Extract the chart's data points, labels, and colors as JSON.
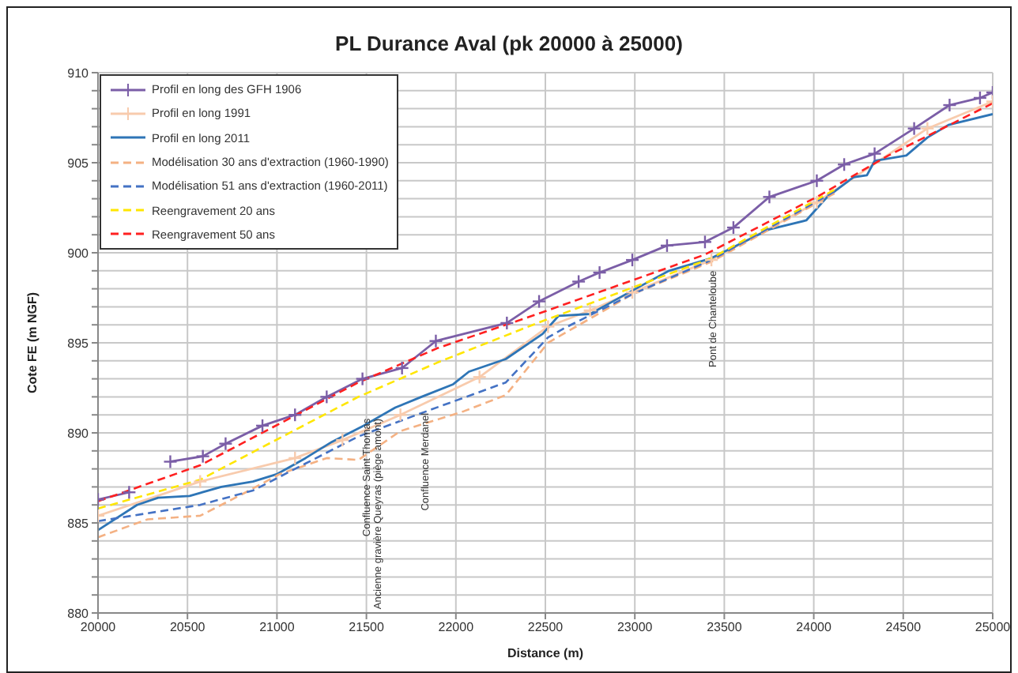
{
  "chart_data": {
    "type": "line",
    "title": "PL Durance Aval (pk 20000 à 25000)",
    "xlabel": "Distance (m)",
    "ylabel": "Cote FE (m NGF)",
    "xlim": [
      20000,
      25000
    ],
    "xticks": [
      20000,
      20500,
      21000,
      21500,
      22000,
      22500,
      23000,
      23500,
      24000,
      24500,
      25000
    ],
    "ylim": [
      880,
      910
    ],
    "yticks": [
      880,
      {
        "value": 881,
        "label": null
      },
      {
        "value": 882,
        "label": null
      },
      {
        "value": 883,
        "label": null
      },
      {
        "value": 884,
        "label": null
      },
      885,
      {
        "value": 886,
        "label": null
      },
      {
        "value": 887,
        "label": null
      },
      {
        "value": 888,
        "label": null
      },
      {
        "value": 889,
        "label": null
      },
      890,
      {
        "value": 891,
        "label": null
      },
      {
        "value": 892,
        "label": null
      },
      {
        "value": 893,
        "label": null
      },
      {
        "value": 894,
        "label": null
      },
      895,
      {
        "value": 896,
        "label": null
      },
      {
        "value": 897,
        "label": null
      },
      {
        "value": 898,
        "label": null
      },
      {
        "value": 899,
        "label": null
      },
      900,
      {
        "value": 901,
        "label": null
      },
      {
        "value": 902,
        "label": null
      },
      {
        "value": 903,
        "label": null
      },
      {
        "value": 904,
        "label": null
      },
      905,
      {
        "value": 906,
        "label": null
      },
      {
        "value": 907,
        "label": null
      },
      {
        "value": 908,
        "label": null
      },
      {
        "value": 909,
        "label": null
      },
      910
    ],
    "grid": true,
    "legend": "top left",
    "series": [
      {
        "name": "Profil en long des GFH 1906",
        "color": "#7b5ea7",
        "marker": "cross",
        "line_style": "solid",
        "x": [
          20000,
          20174,
          20200,
          20404,
          20586,
          20713,
          20919,
          21101,
          21278,
          21478,
          21699,
          21888,
          22285,
          22465,
          22686,
          22803,
          22986,
          23180,
          23392,
          23551,
          23752,
          24017,
          24170,
          24340,
          24561,
          24759,
          24929,
          25000
        ],
        "values": [
          886.3,
          886.7,
          null,
          888.4,
          888.7,
          889.4,
          890.4,
          891.0,
          892.0,
          893.0,
          893.6,
          895.1,
          896.1,
          897.3,
          898.4,
          898.9,
          899.6,
          900.4,
          900.6,
          901.4,
          903.1,
          904.0,
          904.9,
          905.5,
          906.9,
          908.2,
          908.6,
          908.9
        ]
      },
      {
        "name": "Profil en long 1991",
        "color": "#f8cbad",
        "marker": "cross",
        "line_style": "solid",
        "x": [
          20000,
          20571,
          21101,
          21366,
          21690,
          22132,
          22515,
          22750,
          22986,
          23428,
          24017,
          24635,
          25000
        ],
        "values": [
          885.4,
          887.3,
          888.6,
          889.6,
          891.0,
          893.1,
          895.9,
          896.8,
          897.8,
          899.6,
          902.8,
          906.9,
          908.4
        ]
      },
      {
        "name": "Profil en long 2011",
        "color": "#2e75b6",
        "line_style": "solid",
        "x": [
          20000,
          20218,
          20336,
          20512,
          20689,
          20866,
          20998,
          21160,
          21307,
          21484,
          21661,
          21808,
          21985,
          22073,
          22279,
          22485,
          22574,
          22750,
          22986,
          23191,
          23428,
          23752,
          23958,
          24075,
          24223,
          24297,
          24340,
          24517,
          24635,
          24753,
          25000
        ],
        "values": [
          884.6,
          886.0,
          886.4,
          886.5,
          887.0,
          887.3,
          887.7,
          888.6,
          889.5,
          890.4,
          891.4,
          892.0,
          892.7,
          893.4,
          894.1,
          895.5,
          896.5,
          896.6,
          897.9,
          899.0,
          899.7,
          901.3,
          901.8,
          903.1,
          904.2,
          904.3,
          905.1,
          905.4,
          906.4,
          907.1,
          907.7
        ]
      },
      {
        "name": "Modélisation 30 ans d'extraction (1960-1990)",
        "color": "#f4b183",
        "line_style": "dashed",
        "x": [
          20000,
          20277,
          20571,
          20807,
          21013,
          21278,
          21455,
          21690,
          22044,
          22279,
          22515,
          22986,
          23428,
          24134
        ],
        "values": [
          884.2,
          885.2,
          885.4,
          886.6,
          887.7,
          888.6,
          888.5,
          890.1,
          891.2,
          892.1,
          895.0,
          897.7,
          899.5,
          903.4
        ]
      },
      {
        "name": "Modélisation 51 ans d'extraction (1960-2011)",
        "color": "#4472c4",
        "line_style": "dashed",
        "x": [
          20000,
          20571,
          20866,
          21160,
          21455,
          21808,
          22279,
          22515,
          22603,
          22986,
          23428,
          24134
        ],
        "values": [
          885.1,
          886.0,
          886.8,
          888.3,
          889.8,
          891.1,
          892.8,
          895.3,
          895.8,
          897.7,
          899.6,
          903.5
        ]
      },
      {
        "name": "Reengravement 20 ans",
        "color": "#ffe600",
        "line_style": "dashed",
        "x": [
          20000,
          20571,
          21455,
          21896,
          22456,
          23428,
          24134
        ],
        "values": [
          885.8,
          887.4,
          892.0,
          893.9,
          896.1,
          899.7,
          903.6
        ]
      },
      {
        "name": "Reengravement 50 ans",
        "color": "#ff2020",
        "line_style": "dashed",
        "x": [
          20000,
          20571,
          21455,
          21896,
          22456,
          23392,
          24017,
          24417,
          25000
        ],
        "values": [
          886.2,
          888.2,
          892.8,
          894.7,
          896.6,
          899.9,
          903.1,
          905.4,
          908.3
        ]
      }
    ],
    "annotations": [
      {
        "text": "Confluence Saint Thomas",
        "x": 21493,
        "y": 890.8
      },
      {
        "text": "Ancienne gravière Queyras (piège amont)",
        "x": 21555,
        "y": 890.8
      },
      {
        "text": "Confluence Merdanel",
        "x": 21820,
        "y": 891.1
      },
      {
        "text": "Pont de Chanteloube",
        "x": 23428,
        "y": 899.0
      }
    ]
  }
}
